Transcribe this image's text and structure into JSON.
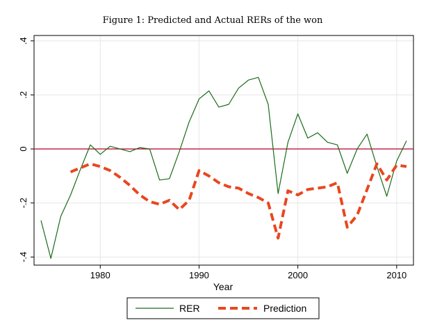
{
  "chart_data": {
    "type": "line",
    "title": "Figure 1: Predicted and Actual RERs of the won",
    "xlabel": "Year",
    "ylabel": "",
    "xlim": [
      1973.3,
      2011.7
    ],
    "ylim": [
      -0.43,
      0.42
    ],
    "xticks": [
      1980,
      1990,
      2000,
      2010
    ],
    "xtick_labels": [
      "1980",
      "1990",
      "2000",
      "2010"
    ],
    "yticks": [
      -0.4,
      -0.2,
      0,
      0.2,
      0.4
    ],
    "ytick_labels": [
      "-.4",
      "-.2",
      "0",
      ".2",
      ".4"
    ],
    "grid": true,
    "reference_line": {
      "y": 0,
      "color": "#c0143c"
    },
    "legend": {
      "placement": "bottom",
      "entries": [
        "RER",
        "Prediction"
      ]
    },
    "series": [
      {
        "name": "RER",
        "color": "#1a6b1a",
        "style": "solid",
        "x": [
          1974,
          1975,
          1976,
          1977,
          1978,
          1979,
          1980,
          1981,
          1982,
          1983,
          1984,
          1985,
          1986,
          1987,
          1988,
          1989,
          1990,
          1991,
          1992,
          1993,
          1994,
          1995,
          1996,
          1997,
          1998,
          1999,
          2000,
          2001,
          2002,
          2003,
          2004,
          2005,
          2006,
          2007,
          2008,
          2009,
          2010,
          2011
        ],
        "values": [
          -0.265,
          -0.405,
          -0.25,
          -0.17,
          -0.075,
          0.015,
          -0.02,
          0.01,
          0.0,
          -0.01,
          0.005,
          0.0,
          -0.115,
          -0.11,
          -0.01,
          0.1,
          0.185,
          0.215,
          0.155,
          0.165,
          0.225,
          0.255,
          0.265,
          0.165,
          -0.165,
          0.025,
          0.13,
          0.04,
          0.06,
          0.025,
          0.015,
          -0.09,
          0.0,
          0.055,
          -0.065,
          -0.175,
          -0.045,
          0.03
        ]
      },
      {
        "name": "Prediction",
        "color": "#e8471f",
        "style": "dashed",
        "x": [
          1977,
          1978,
          1979,
          1980,
          1981,
          1982,
          1983,
          1984,
          1985,
          1986,
          1987,
          1988,
          1989,
          1990,
          1991,
          1992,
          1993,
          1994,
          1995,
          1996,
          1997,
          1998,
          1999,
          2000,
          2001,
          2002,
          2003,
          2004,
          2005,
          2006,
          2007,
          2008,
          2009,
          2010,
          2011
        ],
        "values": [
          -0.085,
          -0.07,
          -0.055,
          -0.065,
          -0.08,
          -0.105,
          -0.135,
          -0.17,
          -0.195,
          -0.205,
          -0.19,
          -0.225,
          -0.19,
          -0.08,
          -0.1,
          -0.125,
          -0.14,
          -0.145,
          -0.165,
          -0.18,
          -0.2,
          -0.33,
          -0.155,
          -0.17,
          -0.15,
          -0.145,
          -0.14,
          -0.125,
          -0.29,
          -0.245,
          -0.15,
          -0.055,
          -0.115,
          -0.06,
          -0.065
        ]
      }
    ]
  }
}
